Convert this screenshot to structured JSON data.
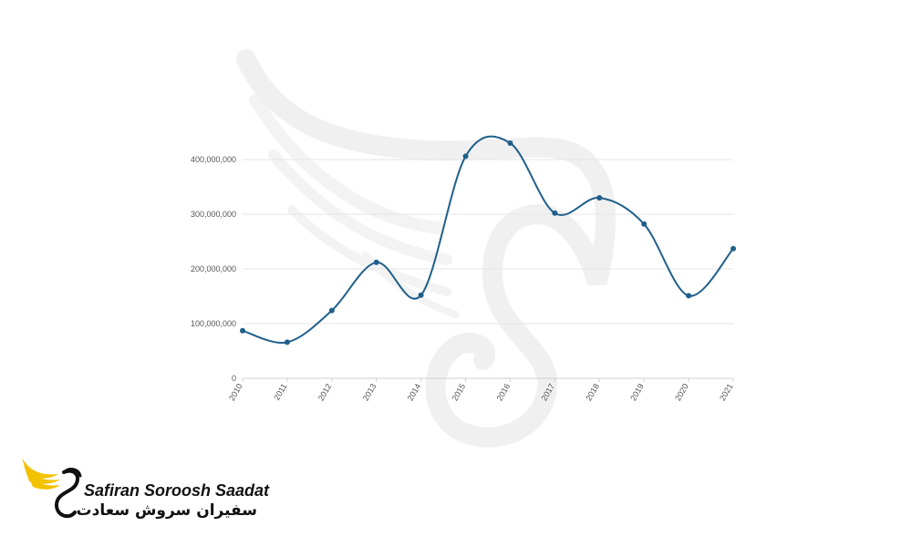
{
  "colors": {
    "series": "#1f5f8b",
    "grid": "#e6e6e6",
    "watermark": "#f2f2f2",
    "logo_wing": "#f2c200"
  },
  "icons": {
    "watermark": "swan-logo-icon",
    "logo": "swan-wing-logo-icon"
  },
  "brand": {
    "name": "Safiran Soroosh Saadat",
    "name_fa": "سفیران سروش سعادت"
  },
  "chart_data": {
    "type": "line",
    "title": "",
    "xlabel": "",
    "ylabel": "",
    "x": [
      "2010",
      "2011",
      "2012",
      "2013",
      "2014",
      "2015",
      "2016",
      "2017",
      "2018",
      "2019",
      "2020",
      "2021"
    ],
    "series": [
      {
        "values": [
          87000000,
          66000000,
          124000000,
          212000000,
          152000000,
          406000000,
          430000000,
          302000000,
          330000000,
          282000000,
          151000000,
          237000000
        ]
      }
    ],
    "ylim": [
      0,
      450000000
    ],
    "yticks": [
      0,
      100000000,
      200000000,
      300000000,
      400000000
    ],
    "ytick_labels": [
      "0",
      "100,000,000",
      "200,000,000",
      "300,000,000",
      "400,000,000"
    ],
    "grid": true,
    "legend": "none"
  }
}
